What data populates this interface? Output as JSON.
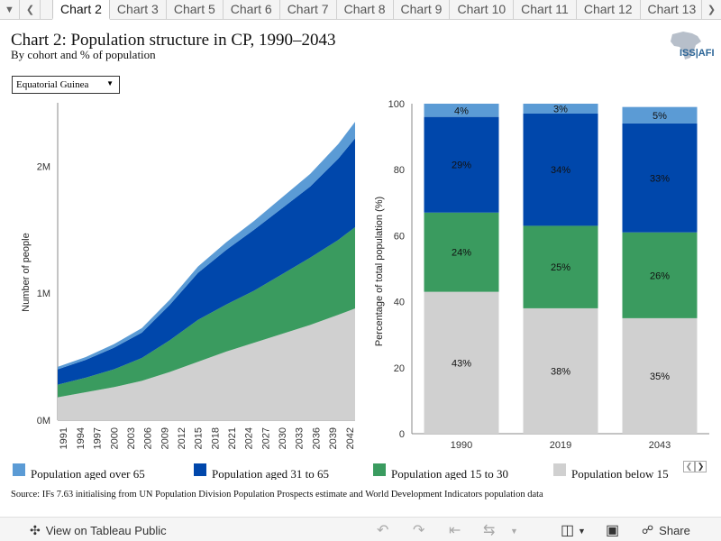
{
  "tabs": {
    "prev_icon": "chevron-left-icon",
    "next_icon": "chevron-right-icon",
    "items": [
      {
        "label": "Chart 2",
        "active": true
      },
      {
        "label": "Chart 3",
        "active": false
      },
      {
        "label": "Chart 5",
        "active": false
      },
      {
        "label": "Chart 6",
        "active": false
      },
      {
        "label": "Chart 7",
        "active": false
      },
      {
        "label": "Chart 8",
        "active": false
      },
      {
        "label": "Chart 9",
        "active": false
      },
      {
        "label": "Chart 10",
        "active": false
      },
      {
        "label": "Chart 11",
        "active": false
      },
      {
        "label": "Chart 12",
        "active": false
      },
      {
        "label": "Chart 13",
        "active": false
      }
    ]
  },
  "header": {
    "title": "Chart 2: Population structure in CP, 1990–2043",
    "subtitle": "By cohort and % of population",
    "logo_text": "ISS|AFI"
  },
  "filter": {
    "selected": "Equatorial Guinea"
  },
  "colors": {
    "over65": "#5b9bd5",
    "age31to65": "#0047ab",
    "age15to30": "#3a9b5f",
    "below15": "#d0d0d0"
  },
  "chart_data": [
    {
      "type": "area",
      "stacked": true,
      "ylabel": "Number of people",
      "yticks": [
        "0M",
        "1M",
        "2M"
      ],
      "ylim": [
        0,
        2500000
      ],
      "x_ticks": [
        "1991",
        "1994",
        "1997",
        "2000",
        "2003",
        "2006",
        "2009",
        "2012",
        "2015",
        "2018",
        "2021",
        "2024",
        "2027",
        "2030",
        "2033",
        "2036",
        "2039",
        "2042"
      ],
      "x": [
        1990,
        1995,
        2000,
        2005,
        2010,
        2015,
        2020,
        2025,
        2030,
        2035,
        2040,
        2043
      ],
      "series": [
        {
          "name": "Population below 15",
          "values": [
            180000,
            220000,
            260000,
            310000,
            380000,
            460000,
            540000,
            610000,
            680000,
            750000,
            830000,
            880000
          ]
        },
        {
          "name": "Population aged 15 to 30",
          "values": [
            100000,
            115000,
            140000,
            180000,
            250000,
            330000,
            370000,
            410000,
            470000,
            530000,
            590000,
            640000
          ]
        },
        {
          "name": "Population aged 31 to 65",
          "values": [
            120000,
            140000,
            170000,
            200000,
            280000,
            370000,
            430000,
            480000,
            520000,
            560000,
            640000,
            700000
          ]
        },
        {
          "name": "Population aged over 65",
          "values": [
            20000,
            22000,
            28000,
            35000,
            40000,
            50000,
            60000,
            70000,
            85000,
            100000,
            115000,
            130000
          ]
        }
      ]
    },
    {
      "type": "bar",
      "stacked": true,
      "ylabel": "Percentage of total population (%)",
      "ylim": [
        0,
        100
      ],
      "yticks": [
        0,
        20,
        40,
        60,
        80,
        100
      ],
      "categories": [
        "1990",
        "2019",
        "2043"
      ],
      "series": [
        {
          "name": "Population below 15",
          "values": [
            43,
            38,
            35
          ],
          "labels": [
            "43%",
            "38%",
            "35%"
          ]
        },
        {
          "name": "Population aged 15 to 30",
          "values": [
            24,
            25,
            26
          ],
          "labels": [
            "24%",
            "25%",
            "26%"
          ]
        },
        {
          "name": "Population aged 31 to 65",
          "values": [
            29,
            34,
            33
          ],
          "labels": [
            "29%",
            "34%",
            "33%"
          ]
        },
        {
          "name": "Population aged over 65",
          "values": [
            4,
            3,
            5
          ],
          "labels": [
            "4%",
            "3%",
            "5%"
          ]
        }
      ]
    }
  ],
  "legend": {
    "items": [
      {
        "label": "Population aged over 65",
        "color": "#5b9bd5"
      },
      {
        "label": "Population aged 31 to 65",
        "color": "#0047ab"
      },
      {
        "label": "Population aged 15 to 30",
        "color": "#3a9b5f"
      },
      {
        "label": "Population below 15",
        "color": "#d0d0d0"
      }
    ]
  },
  "source": "Source: IFs 7.63 initialising from UN Population Division Population Prospects estimate and World Development Indicators population data",
  "footer": {
    "view_label": "View on Tableau Public",
    "share_label": "Share",
    "icons": [
      "undo-icon",
      "redo-icon",
      "revert-icon",
      "refresh-icon",
      "download-icon",
      "fullscreen-icon",
      "share-icon"
    ]
  }
}
